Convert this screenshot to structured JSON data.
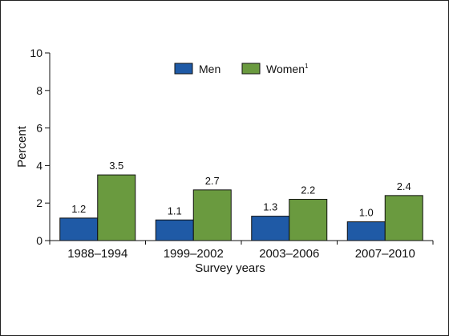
{
  "chart_data": {
    "type": "bar",
    "categories": [
      "1988–1994",
      "1999–2002",
      "2003–2006",
      "2007–2010"
    ],
    "series": [
      {
        "name": "Men",
        "values": [
          1.2,
          1.1,
          1.3,
          1.0
        ],
        "labels": [
          "1.2",
          "1.1",
          "1.3",
          "1.0"
        ],
        "color": "#1f5aa6"
      },
      {
        "name": "Women",
        "name_superscript": "1",
        "values": [
          3.5,
          2.7,
          2.2,
          2.4
        ],
        "labels": [
          "3.5",
          "2.7",
          "2.2",
          "2.4"
        ],
        "color": "#6a9a3f"
      }
    ],
    "xlabel": "Survey years",
    "ylabel": "Percent",
    "ylim": [
      0,
      10
    ],
    "yticks": [
      "0",
      "2",
      "4",
      "6",
      "8",
      "10"
    ],
    "grid": false,
    "legend_position": "top-center"
  }
}
